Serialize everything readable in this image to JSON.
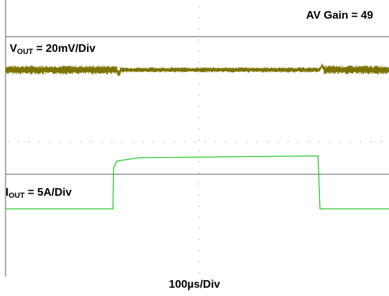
{
  "labels": {
    "gain": "AV Gain = 49",
    "vout_main": "V",
    "vout_sub": "OUT",
    "vout_rest": " = 20mV/Div",
    "iout_main": "I",
    "iout_sub": "OUT",
    "iout_rest": " = 5A/Div",
    "x_scale": "100µs/Div"
  },
  "colors": {
    "vout": "#7d7300",
    "iout": "#1fc41f",
    "axis": "#555555",
    "grid_dot": "#9a9a9a"
  },
  "chart_data": {
    "type": "line",
    "title": "",
    "x_scale": "100µs/Div",
    "xlim": [
      0,
      1000
    ],
    "divisions_x": 10,
    "grid": "dotted center crosshair",
    "series": [
      {
        "name": "VOUT",
        "scale": "20mV/Div",
        "description_points": "noisy ripple around 0",
        "x": [
          0,
          290,
          295,
          300,
          820,
          825,
          830,
          1000
        ],
        "y": [
          0,
          0,
          -12,
          0,
          0,
          12,
          0,
          0
        ]
      },
      {
        "name": "IOUT",
        "scale": "5A/Div",
        "x": [
          0,
          280,
          282,
          290,
          350,
          810,
          815,
          820,
          830,
          1000
        ],
        "y": [
          0,
          0,
          12,
          14,
          15,
          15.5,
          15.5,
          0,
          0,
          0
        ]
      }
    ]
  }
}
